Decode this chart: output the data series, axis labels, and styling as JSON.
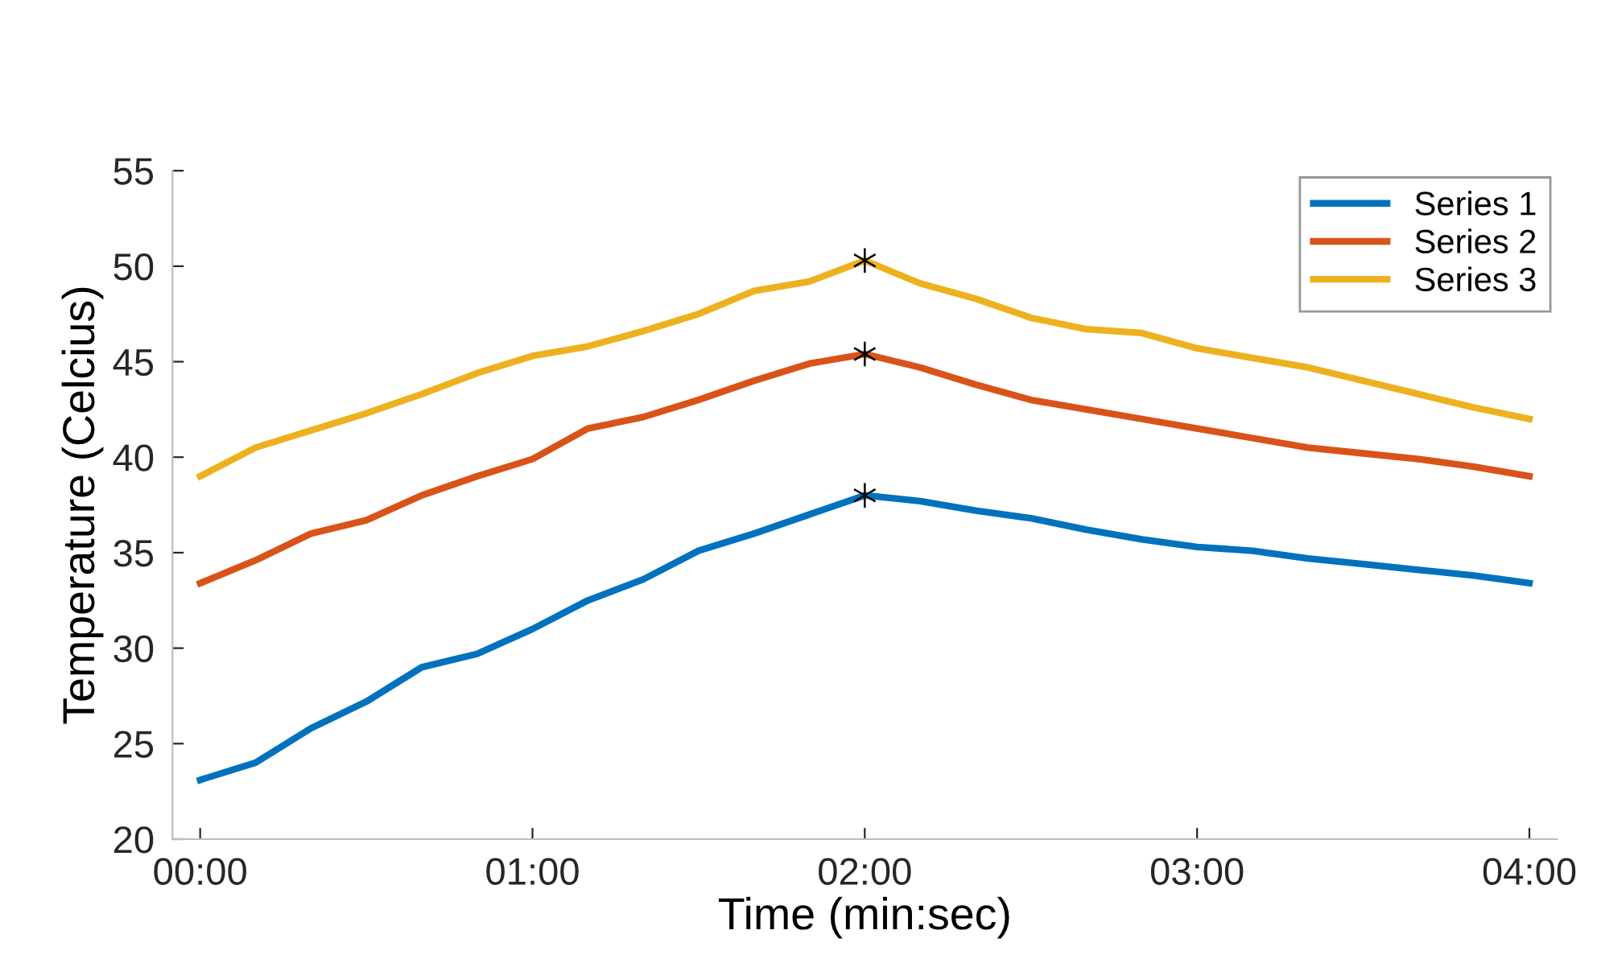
{
  "chart_data": {
    "type": "line",
    "xlabel": "Time (min:sec)",
    "ylabel": "Temperature (Celcius)",
    "x": [
      0,
      10,
      20,
      30,
      40,
      50,
      60,
      70,
      80,
      90,
      100,
      110,
      120,
      130,
      140,
      150,
      160,
      170,
      180,
      190,
      200,
      210,
      220,
      230,
      240
    ],
    "xlim": [
      -5,
      245
    ],
    "ylim": [
      20,
      55
    ],
    "xticks": [
      {
        "value": 0,
        "label": "00:00"
      },
      {
        "value": 60,
        "label": "01:00"
      },
      {
        "value": 120,
        "label": "02:00"
      },
      {
        "value": 180,
        "label": "03:00"
      },
      {
        "value": 240,
        "label": "04:00"
      }
    ],
    "yticks": [
      20,
      25,
      30,
      35,
      40,
      45,
      50,
      55
    ],
    "grid": false,
    "legend": "top right",
    "marker": "none",
    "line_style": "solid",
    "series": [
      {
        "name": "Series 1",
        "color": "#0072bd",
        "values": [
          23.1,
          24.0,
          25.8,
          27.2,
          29.0,
          29.7,
          31.0,
          32.5,
          33.6,
          35.1,
          36.0,
          37.0,
          38.0,
          37.7,
          37.2,
          36.8,
          36.2,
          35.7,
          35.3,
          35.1,
          34.7,
          34.4,
          34.1,
          33.8,
          33.4
        ]
      },
      {
        "name": "Series 2",
        "color": "#d95319",
        "values": [
          33.4,
          34.6,
          36.0,
          36.7,
          38.0,
          39.0,
          39.9,
          41.5,
          42.1,
          43.0,
          44.0,
          44.9,
          45.4,
          44.7,
          43.8,
          43.0,
          42.5,
          42.0,
          41.5,
          41.0,
          40.5,
          40.2,
          39.9,
          39.5,
          39.0
        ]
      },
      {
        "name": "Series 3",
        "color": "#edb120",
        "values": [
          39.0,
          40.5,
          41.4,
          42.3,
          43.3,
          44.4,
          45.3,
          45.8,
          46.6,
          47.5,
          48.7,
          49.2,
          50.3,
          49.1,
          48.3,
          47.3,
          46.7,
          46.5,
          45.7,
          45.2,
          44.7,
          44.0,
          43.3,
          42.6,
          42.0
        ]
      },
      {
        "type": "scatter",
        "color": "#000000",
        "marker": "cross",
        "values": [
          null,
          null,
          null,
          null,
          null,
          null,
          null,
          null,
          null,
          null,
          null,
          null,
          38.0,
          null,
          null,
          null,
          null,
          null,
          null,
          null,
          null,
          null,
          null,
          null,
          null
        ]
      },
      {
        "type": "scatter",
        "color": "#000000",
        "marker": "cross",
        "values": [
          null,
          null,
          null,
          null,
          null,
          null,
          null,
          null,
          null,
          null,
          null,
          null,
          45.4,
          null,
          null,
          null,
          null,
          null,
          null,
          null,
          null,
          null,
          null,
          null,
          null
        ]
      },
      {
        "type": "scatter",
        "color": "#000000",
        "marker": "cross",
        "values": [
          null,
          null,
          null,
          null,
          null,
          null,
          null,
          null,
          null,
          null,
          null,
          null,
          50.3,
          null,
          null,
          null,
          null,
          null,
          null,
          null,
          null,
          null,
          null,
          null,
          null
        ]
      }
    ]
  }
}
